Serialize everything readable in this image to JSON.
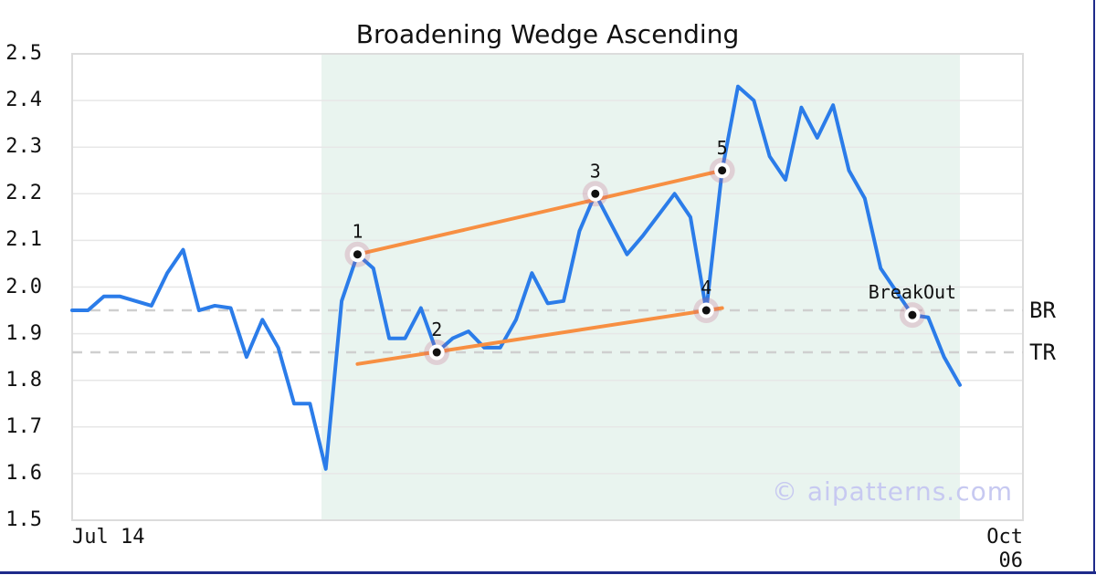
{
  "title": "Broadening Wedge Ascending",
  "watermark": "© aipatterns.com",
  "x_axis": {
    "start_label": "Jul 14",
    "end_label": "Oct 06"
  },
  "levels": {
    "BR": {
      "label": "BR",
      "value": 1.95
    },
    "TR": {
      "label": "TR",
      "value": 1.86
    }
  },
  "chart_data": {
    "type": "line",
    "title": "Broadening Wedge Ascending",
    "xlabel": "",
    "ylabel": "",
    "x_range_labels": [
      "Jul 14",
      "Oct 06"
    ],
    "ylim": [
      1.5,
      2.5
    ],
    "y_ticks": [
      "2.5",
      "2.4",
      "2.3",
      "2.2",
      "2.1",
      "2.0",
      "1.9",
      "1.8",
      "1.7",
      "1.6",
      "1.5"
    ],
    "grid": true,
    "values": [
      1.95,
      1.95,
      1.98,
      1.98,
      1.97,
      1.96,
      2.03,
      2.08,
      1.95,
      1.96,
      1.955,
      1.85,
      1.93,
      1.87,
      1.75,
      1.75,
      1.61,
      1.97,
      2.07,
      2.04,
      1.89,
      1.89,
      1.955,
      1.86,
      1.89,
      1.905,
      1.87,
      1.87,
      1.93,
      2.03,
      1.965,
      1.97,
      2.12,
      2.2,
      2.135,
      2.07,
      2.11,
      2.155,
      2.2,
      2.15,
      1.95,
      2.25,
      2.43,
      2.4,
      2.28,
      2.23,
      2.385,
      2.32,
      2.39,
      2.25,
      2.19,
      2.04,
      1.99,
      1.94,
      1.935,
      1.85,
      1.79
    ],
    "pattern_points": [
      {
        "label": "1",
        "index": 18,
        "value": 2.07
      },
      {
        "label": "2",
        "index": 23,
        "value": 1.86
      },
      {
        "label": "3",
        "index": 33,
        "value": 2.2
      },
      {
        "label": "4",
        "index": 40,
        "value": 1.95
      },
      {
        "label": "5",
        "index": 41,
        "value": 2.25
      },
      {
        "label": "BreakOut",
        "index": 53,
        "value": 1.94
      }
    ],
    "trendlines": [
      {
        "name": "upper",
        "from_index": 18,
        "from_value": 2.07,
        "to_index": 41,
        "to_value": 2.25
      },
      {
        "name": "lower",
        "from_index": 18,
        "from_value": 1.835,
        "to_index": 41,
        "to_value": 1.955
      }
    ],
    "dashed_levels": [
      {
        "name": "BR",
        "value": 1.95
      },
      {
        "name": "TR",
        "value": 1.86
      }
    ],
    "shaded_region": {
      "from_index": 15.73,
      "to_index": 56
    },
    "legend": null,
    "colors": {
      "price_line": "#2b7ce9",
      "trendline": "#f78f42",
      "shade": "#e9f4ef",
      "dashed_level": "#cfcfcf",
      "gridline": "#e7e7e7",
      "plot_border": "#dcdcdc",
      "marker_dot": "#111111",
      "marker_halo": "rgba(192,96,128,0.24)",
      "watermark": "#c7c9f1",
      "bottom_bar": "#1e2a8a"
    }
  }
}
